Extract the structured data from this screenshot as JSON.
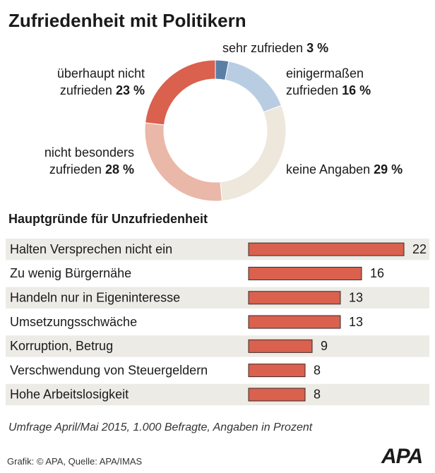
{
  "title": "Zufriedenheit mit Politikern",
  "chart_data": [
    {
      "type": "donut",
      "categories": [
        "sehr zufrieden",
        "einigermaßen zufrieden",
        "keine Angaben",
        "nicht besonders zufrieden",
        "überhaupt nicht zufrieden"
      ],
      "values": [
        3,
        16,
        29,
        28,
        23
      ],
      "value_labels": [
        "3 %",
        "16 %",
        "29 %",
        "28 %",
        "23 %"
      ],
      "colors": [
        "#5a7ea6",
        "#b9cde2",
        "#ede7dc",
        "#eab8a8",
        "#d9614e"
      ]
    },
    {
      "type": "bar",
      "title": "Hauptgründe für Unzufriedenheit",
      "categories": [
        "Halten Versprechen nicht ein",
        "Zu wenig Bürgernähe",
        "Handeln nur in Eigeninteresse",
        "Umsetzungsschwäche",
        "Korruption, Betrug",
        "Verschwendung von Steuergeldern",
        "Hohe Arbeitslosigkeit"
      ],
      "values": [
        22,
        16,
        13,
        13,
        9,
        8,
        8
      ],
      "color": "#d9614e"
    }
  ],
  "note": "Umfrage April/Mai 2015, 1.000 Befragte, Angaben in Prozent",
  "source": "Grafik: © APA, Quelle: APA/IMAS",
  "logo": "APA"
}
